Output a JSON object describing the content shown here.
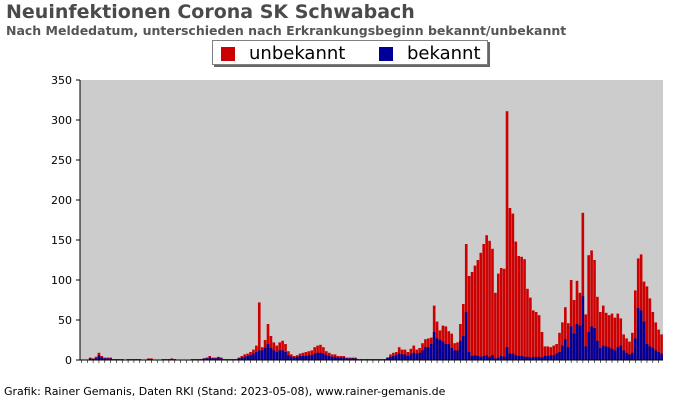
{
  "page": {
    "title": "Neuinfektionen Corona SK Schwabach",
    "subtitle": "Nach Meldedatum, unterschieden nach Erkrankungsbeginn bekannt/unbekannt",
    "footer": "Grafik: Rainer Gemanis, Daten RKI (Stand: 2023-05-08), www.rainer-gemanis.de"
  },
  "colors": {
    "unbekannt": "#cc0000",
    "bekannt": "#000099",
    "plot_bg": "#cccccc"
  },
  "chart_data": {
    "type": "bar",
    "stacked": true,
    "title": "Neuinfektionen Corona SK Schwabach",
    "subtitle": "Nach Meldedatum, unterschieden nach Erkrankungsbeginn bekannt/unbekannt",
    "ylim": [
      0,
      350
    ],
    "yticks": [
      0,
      50,
      100,
      150,
      200,
      250,
      300,
      350
    ],
    "grid": false,
    "legend_position": "top-center",
    "x_unit": "week index (weekly bars, 2020 to 2023; date tick labels are illegible)",
    "x": [
      1,
      2,
      3,
      4,
      5,
      6,
      7,
      8,
      9,
      10,
      11,
      12,
      13,
      14,
      15,
      16,
      17,
      18,
      19,
      20,
      21,
      22,
      23,
      24,
      25,
      26,
      27,
      28,
      29,
      30,
      31,
      32,
      33,
      34,
      35,
      36,
      37,
      38,
      39,
      40,
      41,
      42,
      43,
      44,
      45,
      46,
      47,
      48,
      49,
      50,
      51,
      52,
      53,
      54,
      55,
      56,
      57,
      58,
      59,
      60,
      61,
      62,
      63,
      64,
      65,
      66,
      67,
      68,
      69,
      70,
      71,
      72,
      73,
      74,
      75,
      76,
      77,
      78,
      79,
      80,
      81,
      82,
      83,
      84,
      85,
      86,
      87,
      88,
      89,
      90,
      91,
      92,
      93,
      94,
      95,
      96,
      97,
      98,
      99,
      100,
      101,
      102,
      103,
      104,
      105,
      106,
      107,
      108,
      109,
      110,
      111,
      112,
      113,
      114,
      115,
      116,
      117,
      118,
      119,
      120,
      121,
      122,
      123,
      124,
      125,
      126,
      127,
      128,
      129,
      130,
      131,
      132,
      133,
      134,
      135,
      136,
      137,
      138,
      139,
      140,
      141,
      142,
      143,
      144,
      145,
      146,
      147,
      148,
      149,
      150,
      151,
      152,
      153,
      154,
      155,
      156,
      157,
      158,
      159,
      160,
      161,
      162,
      163,
      164,
      165,
      166,
      167,
      168,
      169,
      170,
      171,
      172,
      173,
      174,
      175,
      176,
      177,
      178,
      179,
      180,
      181,
      182,
      183,
      184,
      185,
      186,
      187,
      188,
      189,
      190,
      191,
      192,
      193,
      194,
      195,
      196,
      197,
      198,
      199,
      200
    ],
    "series": [
      {
        "name": "unbekannt",
        "color": "#cc0000",
        "values": [
          0,
          0,
          0,
          1,
          1,
          2,
          3,
          2,
          1,
          1,
          1,
          0,
          0,
          0,
          0,
          0,
          0,
          0,
          0,
          0,
          0,
          0,
          0,
          1,
          1,
          0,
          0,
          0,
          0,
          0,
          0,
          1,
          0,
          0,
          0,
          0,
          0,
          0,
          0,
          0,
          0,
          0,
          0,
          1,
          2,
          1,
          1,
          1,
          1,
          0,
          0,
          0,
          0,
          0,
          1,
          2,
          3,
          3,
          4,
          5,
          8,
          60,
          4,
          10,
          25,
          15,
          10,
          8,
          10,
          12,
          10,
          5,
          3,
          2,
          2,
          3,
          4,
          5,
          5,
          6,
          8,
          9,
          10,
          8,
          5,
          4,
          3,
          3,
          2,
          2,
          2,
          1,
          1,
          1,
          1,
          0,
          0,
          0,
          0,
          0,
          0,
          0,
          0,
          0,
          0,
          0,
          3,
          4,
          4,
          8,
          6,
          6,
          5,
          6,
          9,
          5,
          6,
          9,
          10,
          11,
          8,
          33,
          21,
          12,
          20,
          22,
          16,
          18,
          9,
          10,
          21,
          40,
          85,
          95,
          105,
          112,
          120,
          130,
          140,
          150,
          145,
          133,
          82,
          105,
          110,
          110,
          295,
          182,
          175,
          142,
          125,
          124,
          122,
          85,
          75,
          58,
          56,
          52,
          32,
          12,
          12,
          10,
          12,
          12,
          24,
          29,
          40,
          30,
          58,
          42,
          54,
          41,
          104,
          40,
          96,
          95,
          85,
          55,
          45,
          50,
          42,
          40,
          44,
          41,
          42,
          34,
          20,
          18,
          16,
          25,
          60,
          62,
          70,
          50,
          72,
          60,
          45,
          35,
          28,
          24
        ]
      },
      {
        "name": "bekannt",
        "color": "#000099",
        "values": [
          0,
          0,
          0,
          2,
          1,
          2,
          6,
          3,
          2,
          2,
          2,
          1,
          1,
          1,
          1,
          0,
          1,
          1,
          1,
          1,
          1,
          0,
          0,
          1,
          1,
          0,
          0,
          0,
          1,
          1,
          1,
          1,
          1,
          0,
          0,
          0,
          0,
          0,
          1,
          1,
          1,
          1,
          2,
          2,
          3,
          2,
          2,
          3,
          2,
          1,
          1,
          1,
          1,
          1,
          2,
          3,
          4,
          5,
          6,
          8,
          10,
          12,
          12,
          15,
          20,
          15,
          12,
          10,
          12,
          12,
          10,
          6,
          4,
          3,
          4,
          5,
          5,
          5,
          6,
          6,
          8,
          9,
          9,
          8,
          6,
          5,
          4,
          4,
          3,
          3,
          3,
          2,
          2,
          2,
          2,
          1,
          1,
          1,
          1,
          1,
          1,
          1,
          1,
          1,
          1,
          3,
          4,
          5,
          6,
          8,
          7,
          7,
          5,
          8,
          9,
          8,
          9,
          12,
          16,
          16,
          20,
          35,
          27,
          25,
          23,
          20,
          20,
          15,
          12,
          12,
          24,
          30,
          60,
          10,
          5,
          6,
          5,
          4,
          5,
          6,
          4,
          6,
          2,
          3,
          5,
          4,
          16,
          8,
          8,
          6,
          5,
          5,
          4,
          4,
          3,
          4,
          4,
          4,
          3,
          5,
          5,
          6,
          6,
          8,
          10,
          18,
          26,
          16,
          42,
          33,
          45,
          43,
          80,
          17,
          35,
          42,
          40,
          24,
          15,
          18,
          17,
          16,
          14,
          12,
          16,
          18,
          12,
          9,
          7,
          9,
          27,
          65,
          62,
          48,
          20,
          17,
          15,
          12,
          10,
          8
        ]
      }
    ]
  }
}
